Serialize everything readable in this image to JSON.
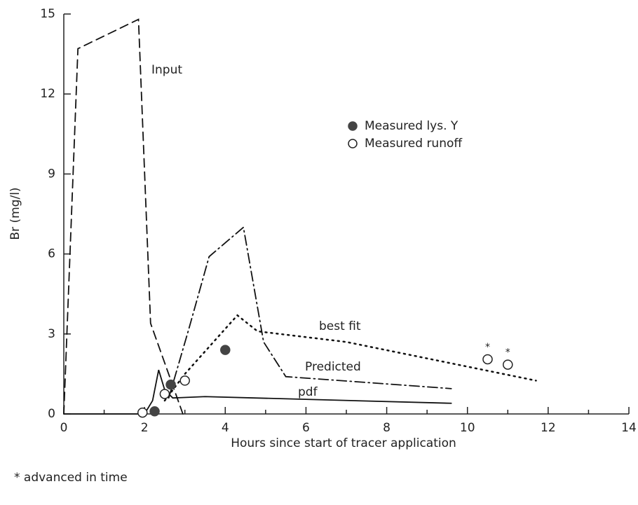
{
  "chart_data": {
    "type": "line",
    "xlabel": "Hours since start of tracer application",
    "ylabel": "Br (mg/l)",
    "xlim": [
      0,
      14
    ],
    "xticks": [
      0,
      2,
      4,
      6,
      8,
      10,
      12,
      14
    ],
    "xminorticks": [
      1,
      3,
      5,
      7,
      9,
      11,
      13
    ],
    "ylim": [
      0,
      15
    ],
    "yticks": [
      0,
      3,
      6,
      9,
      12,
      15
    ],
    "grid": false,
    "legend": "upper right",
    "footnote": "* advanced in time",
    "series": [
      {
        "name": "Input",
        "mode": "line",
        "style": "dashed",
        "color": "#111111",
        "x": [
          0,
          0.35,
          1.85,
          2.15,
          2.95
        ],
        "values": [
          0,
          13.7,
          14.8,
          3.4,
          0
        ]
      },
      {
        "name": "Predicted",
        "mode": "line",
        "style": "dashdot",
        "color": "#111111",
        "x": [
          2.6,
          3.1,
          3.6,
          4.45,
          4.95,
          5.5,
          9.6
        ],
        "values": [
          0.6,
          3.2,
          5.9,
          7.0,
          2.7,
          1.4,
          0.95
        ]
      },
      {
        "name": "best fit",
        "mode": "line",
        "style": "dotted",
        "color": "#111111",
        "x": [
          2.5,
          3.0,
          4.3,
          4.8,
          7.0,
          11.7
        ],
        "values": [
          0.5,
          1.5,
          3.7,
          3.1,
          2.7,
          1.25
        ]
      },
      {
        "name": "pdf",
        "mode": "line",
        "style": "solid",
        "color": "#111111",
        "x": [
          0,
          2.0,
          2.2,
          2.35,
          2.5,
          2.7,
          3.5,
          9.6
        ],
        "values": [
          0,
          0,
          0.5,
          1.65,
          0.9,
          0.6,
          0.65,
          0.4
        ]
      },
      {
        "name": "Measured lys. Y",
        "mode": "markers",
        "filled": true,
        "color": "#444444",
        "x": [
          2.25,
          2.65,
          4.0
        ],
        "values": [
          0.1,
          1.1,
          2.4
        ]
      },
      {
        "name": "Measured runoff",
        "mode": "markers",
        "filled": false,
        "color": "#222222",
        "x": [
          1.95,
          2.5,
          3.0,
          10.5,
          11.0
        ],
        "values": [
          0.05,
          0.75,
          1.25,
          2.05,
          1.85
        ],
        "point_labels": [
          null,
          null,
          null,
          "*",
          "*"
        ]
      }
    ]
  }
}
